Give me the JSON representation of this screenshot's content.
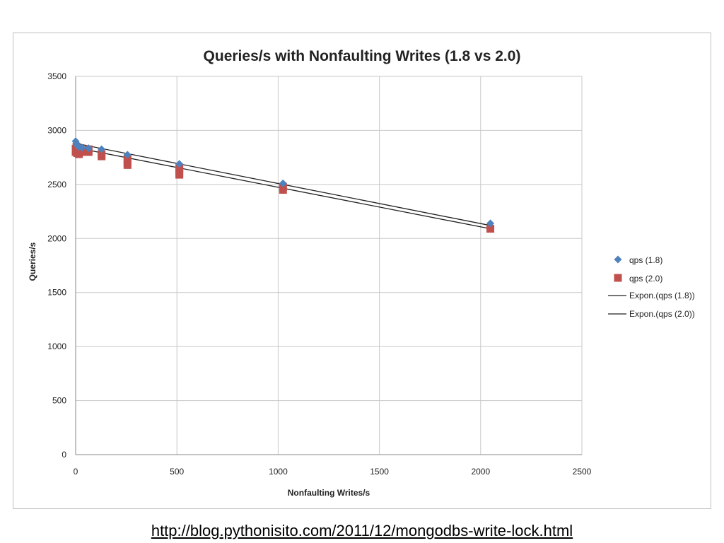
{
  "chart_data": {
    "type": "scatter",
    "title": "Queries/s with Nonfaulting Writes (1.8 vs 2.0)",
    "xlabel": "Nonfaulting Writes/s",
    "ylabel": "Queries/s",
    "xlim": [
      0,
      2500
    ],
    "ylim": [
      0,
      3500
    ],
    "x_ticks": [
      0,
      500,
      1000,
      1500,
      2000,
      2500
    ],
    "y_ticks": [
      0,
      500,
      1000,
      1500,
      2000,
      2500,
      3000,
      3500
    ],
    "grid": true,
    "legend_position": "right",
    "series": [
      {
        "name": "qps (1.8)",
        "marker": "diamond",
        "color": "#4f81bd",
        "points": [
          {
            "x": 0,
            "y": 2900
          },
          {
            "x": 4,
            "y": 2880
          },
          {
            "x": 8,
            "y": 2860
          },
          {
            "x": 16,
            "y": 2850
          },
          {
            "x": 32,
            "y": 2840
          },
          {
            "x": 64,
            "y": 2835
          },
          {
            "x": 128,
            "y": 2825
          },
          {
            "x": 256,
            "y": 2775
          },
          {
            "x": 512,
            "y": 2690
          },
          {
            "x": 1024,
            "y": 2510
          },
          {
            "x": 2048,
            "y": 2140
          }
        ]
      },
      {
        "name": "qps (2.0)",
        "marker": "square",
        "color": "#c0504d",
        "points": [
          {
            "x": 0,
            "y": 2830
          },
          {
            "x": 0,
            "y": 2800
          },
          {
            "x": 4,
            "y": 2850
          },
          {
            "x": 8,
            "y": 2790
          },
          {
            "x": 16,
            "y": 2780
          },
          {
            "x": 16,
            "y": 2820
          },
          {
            "x": 32,
            "y": 2810
          },
          {
            "x": 48,
            "y": 2800
          },
          {
            "x": 64,
            "y": 2825
          },
          {
            "x": 64,
            "y": 2800
          },
          {
            "x": 128,
            "y": 2780
          },
          {
            "x": 128,
            "y": 2760
          },
          {
            "x": 256,
            "y": 2740
          },
          {
            "x": 256,
            "y": 2700
          },
          {
            "x": 256,
            "y": 2680
          },
          {
            "x": 512,
            "y": 2650
          },
          {
            "x": 512,
            "y": 2610
          },
          {
            "x": 512,
            "y": 2590
          },
          {
            "x": 1024,
            "y": 2480
          },
          {
            "x": 1024,
            "y": 2450
          },
          {
            "x": 2048,
            "y": 2090
          }
        ]
      }
    ],
    "trendlines": [
      {
        "name": "Expon.(qps (1.8))",
        "color": "#222222",
        "from": {
          "x": 0,
          "y": 2880
        },
        "to": {
          "x": 2048,
          "y": 2120
        }
      },
      {
        "name": "Expon.(qps (2.0))",
        "color": "#222222",
        "from": {
          "x": 0,
          "y": 2840
        },
        "to": {
          "x": 2048,
          "y": 2090
        }
      }
    ]
  },
  "footer": {
    "source_link": "http://blog.pythonisito.com/2011/12/mongodbs-write-lock.html"
  }
}
